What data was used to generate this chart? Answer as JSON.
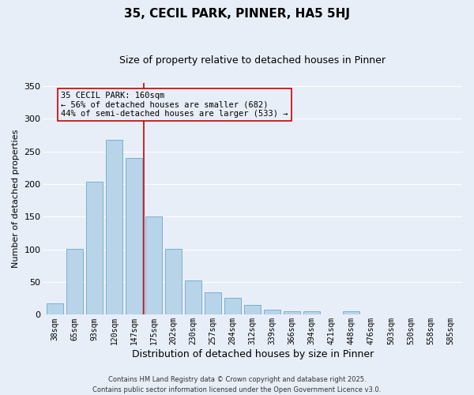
{
  "title": "35, CECIL PARK, PINNER, HA5 5HJ",
  "subtitle": "Size of property relative to detached houses in Pinner",
  "xlabel": "Distribution of detached houses by size in Pinner",
  "ylabel": "Number of detached properties",
  "bar_labels": [
    "38sqm",
    "65sqm",
    "93sqm",
    "120sqm",
    "147sqm",
    "175sqm",
    "202sqm",
    "230sqm",
    "257sqm",
    "284sqm",
    "312sqm",
    "339sqm",
    "366sqm",
    "394sqm",
    "421sqm",
    "448sqm",
    "476sqm",
    "503sqm",
    "530sqm",
    "558sqm",
    "585sqm"
  ],
  "bar_values": [
    18,
    101,
    204,
    268,
    240,
    151,
    101,
    53,
    34,
    26,
    15,
    8,
    5,
    5,
    1,
    5,
    1,
    1,
    0,
    0,
    1
  ],
  "bar_color": "#b8d4e8",
  "bar_edgecolor": "#7aafd4",
  "vline_x": 4.5,
  "vline_color": "#cc0000",
  "annotation_line1": "35 CECIL PARK: 160sqm",
  "annotation_line2": "← 56% of detached houses are smaller (682)",
  "annotation_line3": "44% of semi-detached houses are larger (533) →",
  "box_edgecolor": "#cc0000",
  "ylim": [
    0,
    355
  ],
  "yticks": [
    0,
    50,
    100,
    150,
    200,
    250,
    300,
    350
  ],
  "background_color": "#e8eef8",
  "grid_color": "#ffffff",
  "footnote": "Contains HM Land Registry data © Crown copyright and database right 2025.\nContains public sector information licensed under the Open Government Licence v3.0.",
  "title_fontsize": 11,
  "subtitle_fontsize": 9,
  "xlabel_fontsize": 9,
  "ylabel_fontsize": 8,
  "tick_fontsize": 7,
  "annot_fontsize": 7.5,
  "footnote_fontsize": 6
}
